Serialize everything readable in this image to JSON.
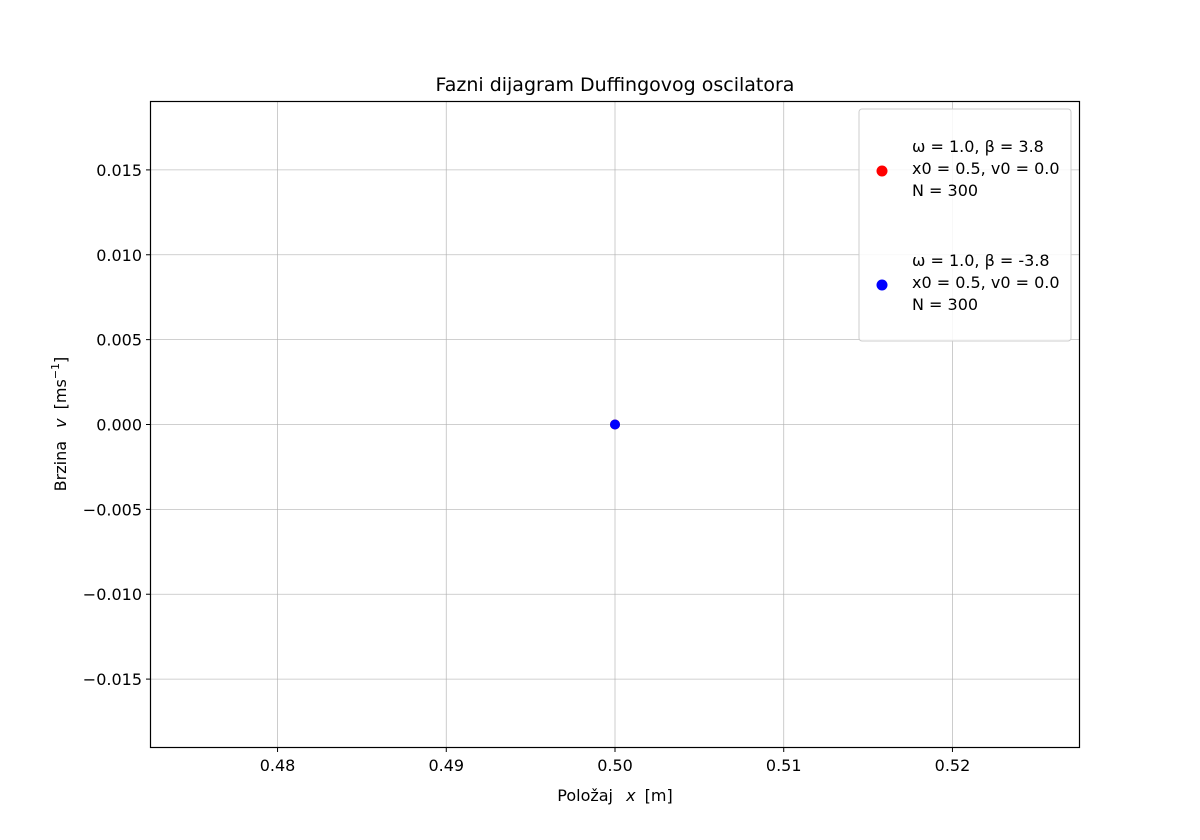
{
  "chart_data": {
    "type": "scatter",
    "title": "Fazni dijagram Duffingovog oscilatora",
    "xlabel_prefix": "Položaj",
    "xlabel_var": "x",
    "xlabel_unit": "[m]",
    "ylabel_prefix": "Brzina",
    "ylabel_var": "v",
    "ylabel_unit_open": "[ms",
    "ylabel_unit_exp": "−1",
    "ylabel_unit_close": "]",
    "xlim": [
      0.4725,
      0.5275
    ],
    "ylim": [
      -0.019,
      0.019
    ],
    "xticks": [
      0.48,
      0.49,
      0.5,
      0.51,
      0.52
    ],
    "xtick_labels": [
      "0.48",
      "0.49",
      "0.50",
      "0.51",
      "0.52"
    ],
    "yticks": [
      0.015,
      0.01,
      0.005,
      0.0,
      -0.005,
      -0.01,
      -0.015
    ],
    "ytick_labels": [
      "0.015",
      "0.010",
      "0.005",
      "0.000",
      "−0.005",
      "−0.010",
      "−0.015"
    ],
    "grid": true,
    "legend_position": "top-right",
    "series": [
      {
        "color": "#ff0000",
        "legend_lines": [
          "ω = 1.0, β = 3.8",
          "x0 = 0.5, v0 = 0.0",
          "N = 300"
        ],
        "x": [
          0.5
        ],
        "y": [
          0.0
        ]
      },
      {
        "color": "#0000ff",
        "legend_lines": [
          "ω = 1.0, β = -3.8",
          "x0 = 0.5, v0 = 0.0",
          "N = 300"
        ],
        "x": [
          0.5
        ],
        "y": [
          0.0
        ]
      }
    ]
  }
}
